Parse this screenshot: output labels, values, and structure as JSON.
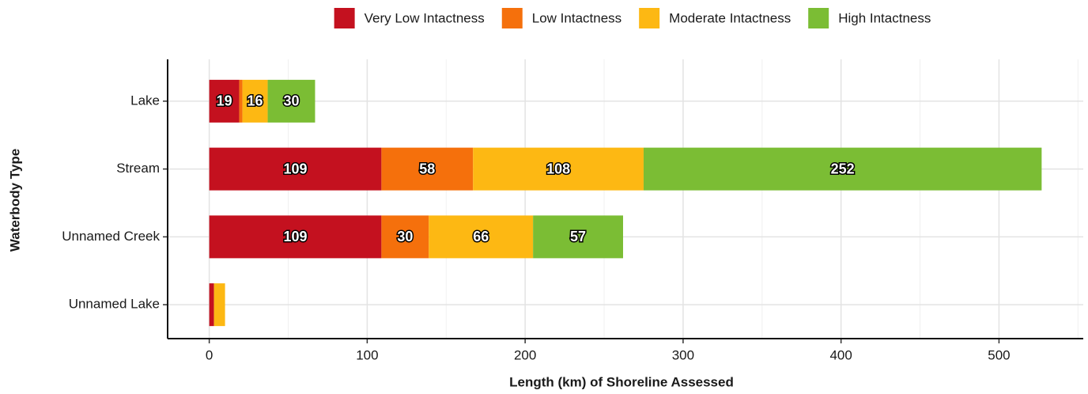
{
  "chart_data": {
    "type": "stacked-horizontal-bar",
    "xlabel": "Length (km) of Shoreline Assessed",
    "ylabel": "Waterbody Type",
    "categories": [
      "Lake",
      "Stream",
      "Unnamed Creek",
      "Unnamed Lake"
    ],
    "series": [
      {
        "name": "Very Low Intactness",
        "color": "#c4111f",
        "values": [
          19,
          109,
          109,
          3
        ],
        "value_labels": [
          "19",
          "109",
          "109",
          null
        ]
      },
      {
        "name": "Low Intactness",
        "color": "#f5700c",
        "values": [
          2,
          58,
          30,
          0
        ],
        "value_labels": [
          null,
          "58",
          "30",
          null
        ]
      },
      {
        "name": "Moderate Intactness",
        "color": "#fdb813",
        "values": [
          16,
          108,
          66,
          7
        ],
        "value_labels": [
          "16",
          "108",
          "66",
          null
        ]
      },
      {
        "name": "High Intactness",
        "color": "#7bbd34",
        "values": [
          30,
          252,
          57,
          0
        ],
        "value_labels": [
          "30",
          "252",
          "57",
          null
        ]
      }
    ],
    "xlim": [
      -26.35,
      553.35
    ],
    "xticks": [
      0,
      100,
      200,
      300,
      400,
      500
    ],
    "x_minor_ticks": [
      50,
      150,
      250,
      350,
      450,
      550
    ],
    "grid": true,
    "legend": "top"
  }
}
